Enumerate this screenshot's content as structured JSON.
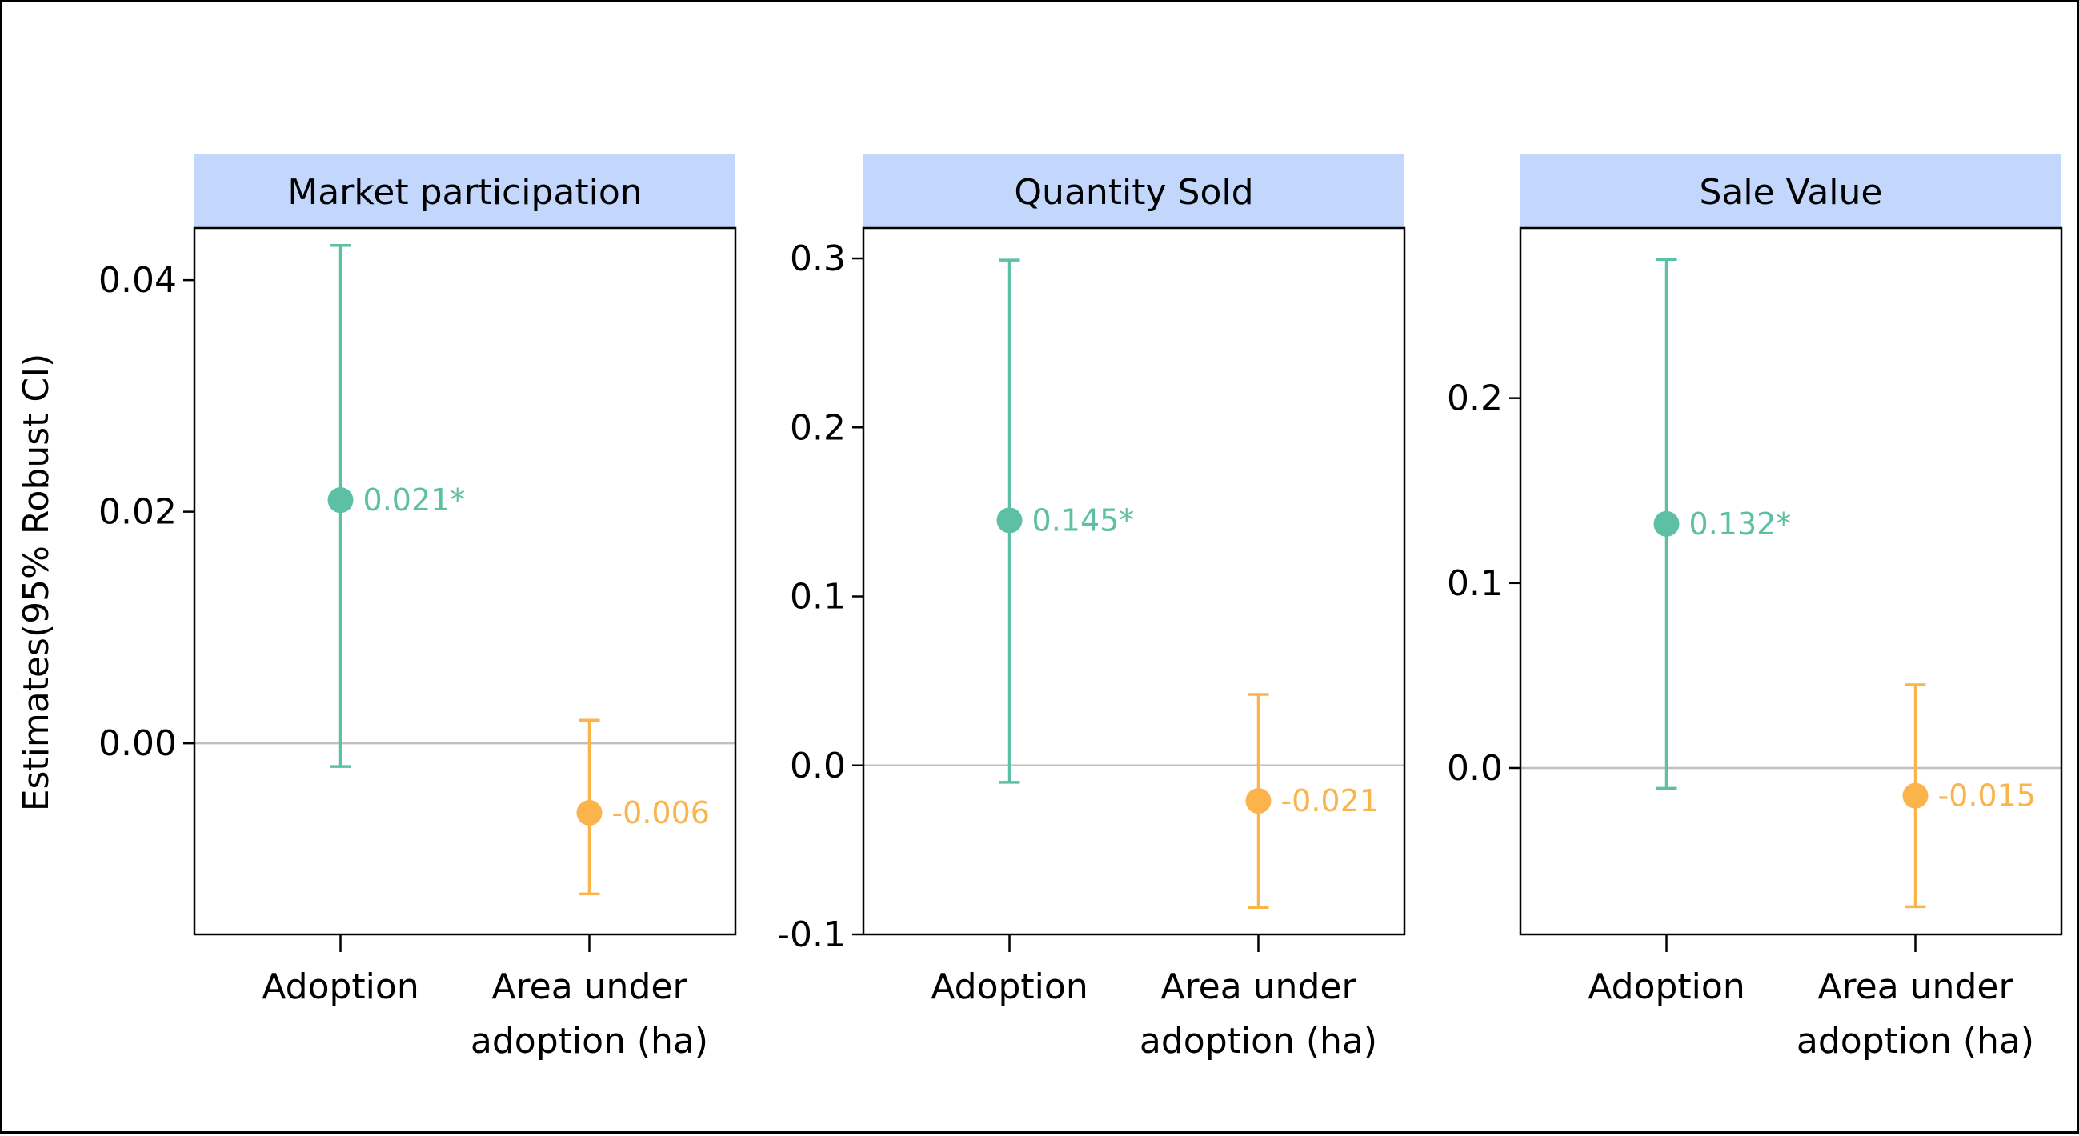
{
  "chart_data": {
    "type": "errorbar",
    "ylabel": "Estimates(95% Robust CI)",
    "categories": [
      "Adoption",
      "Area under adoption (ha)"
    ],
    "category_tick_labels": [
      [
        "Adoption"
      ],
      [
        "Area under",
        "adoption (ha)"
      ]
    ],
    "colors": {
      "Adoption": "#5dbfa3",
      "Area under adoption (ha)": "#fbb44c",
      "strip_background": "#c2d7fb",
      "zero_line": "#c0c0c0"
    },
    "grid": false,
    "legend": "none",
    "panels": [
      {
        "title": "Market participation",
        "ylim": [
          -0.0165,
          0.0445
        ],
        "yticks": [
          0.0,
          0.02,
          0.04
        ],
        "ytick_labels": [
          "0.00",
          "0.02",
          "0.04"
        ],
        "points": [
          {
            "category": "Adoption",
            "estimate": 0.021,
            "ci_low": -0.002,
            "ci_high": 0.043,
            "label": "0.021*"
          },
          {
            "category": "Area under adoption (ha)",
            "estimate": -0.006,
            "ci_low": -0.013,
            "ci_high": 0.002,
            "label": "-0.006"
          }
        ]
      },
      {
        "title": "Quantity Sold",
        "ylim": [
          -0.1,
          0.318
        ],
        "yticks": [
          -0.1,
          0.0,
          0.1,
          0.2,
          0.3
        ],
        "ytick_labels": [
          "-0.1",
          "0.0",
          "0.1",
          "0.2",
          "0.3"
        ],
        "points": [
          {
            "category": "Adoption",
            "estimate": 0.145,
            "ci_low": -0.01,
            "ci_high": 0.299,
            "label": "0.145*"
          },
          {
            "category": "Area under adoption (ha)",
            "estimate": -0.021,
            "ci_low": -0.084,
            "ci_high": 0.042,
            "label": "-0.021"
          }
        ]
      },
      {
        "title": "Sale Value",
        "ylim": [
          -0.09,
          0.292
        ],
        "yticks": [
          0.0,
          0.1,
          0.2
        ],
        "ytick_labels": [
          "0.0",
          "0.1",
          "0.2"
        ],
        "points": [
          {
            "category": "Adoption",
            "estimate": 0.132,
            "ci_low": -0.011,
            "ci_high": 0.275,
            "label": "0.132*"
          },
          {
            "category": "Area under adoption (ha)",
            "estimate": -0.015,
            "ci_low": -0.075,
            "ci_high": 0.045,
            "label": "-0.015"
          }
        ]
      }
    ]
  }
}
